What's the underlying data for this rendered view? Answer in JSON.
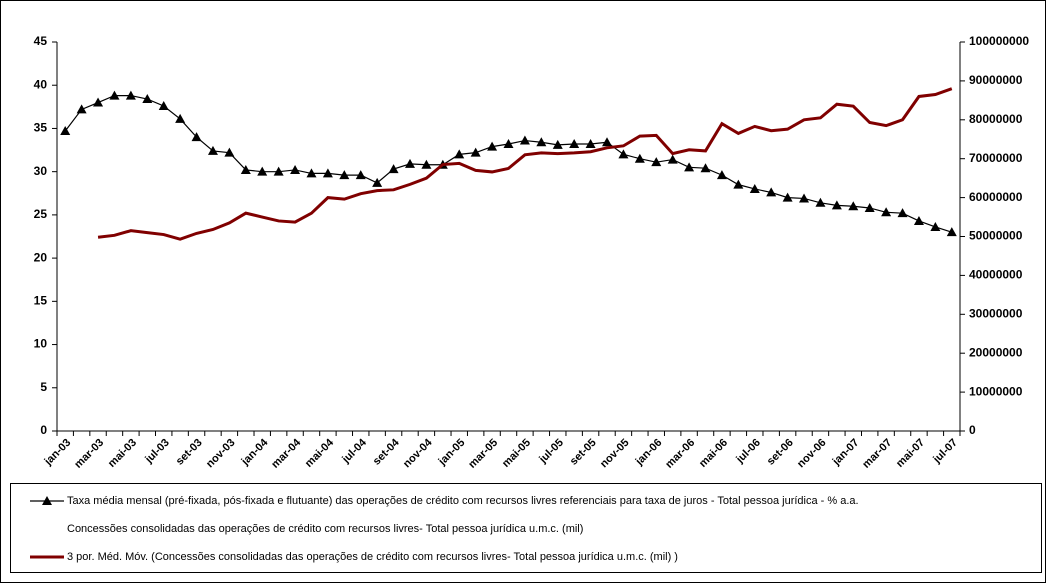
{
  "chart_data": {
    "type": "line",
    "categories": [
      "jan-03",
      null,
      "mar-03",
      null,
      "mai-03",
      null,
      "jul-03",
      null,
      "set-03",
      null,
      "nov-03",
      null,
      "jan-04",
      null,
      "mar-04",
      null,
      "mai-04",
      null,
      "jul-04",
      null,
      "set-04",
      null,
      "nov-04",
      null,
      "jan-05",
      null,
      "mar-05",
      null,
      "mai-05",
      null,
      "jul-05",
      null,
      "set-05",
      null,
      "nov-05",
      null,
      "jan-06",
      null,
      "mar-06",
      null,
      "mai-06",
      null,
      "jul-06",
      null,
      "set-06",
      null,
      "nov-06",
      null,
      "jan-07",
      null,
      "mar-07",
      null,
      "mai-07",
      null,
      "jul-07"
    ],
    "series": [
      {
        "name": "Taxa média mensal (pré-fixada, pós-fixada e flutuante) das operações de crédito com recursos livres referenciais para taxa de juros - Total pessoa jurídica - % a.a.",
        "color": "#000000",
        "values": [
          34.7,
          37.2,
          38.0,
          38.8,
          38.8,
          38.4,
          37.6,
          36.1,
          34.0,
          32.4,
          32.2,
          30.2,
          30.0,
          30.0,
          30.2,
          29.8,
          29.8,
          29.6,
          29.6,
          28.7,
          30.3,
          30.9,
          30.8,
          30.8,
          32.0,
          32.2,
          32.9,
          33.2,
          33.6,
          33.4,
          33.1,
          33.2,
          33.2,
          33.4,
          32.0,
          31.5,
          31.1,
          31.4,
          30.5,
          30.4,
          29.6,
          28.5,
          28.0,
          27.6,
          27.0,
          26.9,
          26.4,
          26.1,
          26.0,
          25.8,
          25.3,
          25.2,
          24.3,
          23.6,
          23.0
        ]
      },
      {
        "name": "Concessões consolidadas das operações de crédito com recursos livres- Total pessoa jurídica u.m.c. (mil)"
      },
      {
        "name": "3 por. Méd. Móv. (Concessões consolidadas das operações de crédito com recursos livres- Total pessoa jurídica u.m.c. (mil) )",
        "color": "#800000",
        "axis": "y2",
        "values": [
          null,
          null,
          49800000,
          50300000,
          51500000,
          51000000,
          50500000,
          49300000,
          50800000,
          51800000,
          53500000,
          56000000,
          55000000,
          54000000,
          53700000,
          56000000,
          60000000,
          59600000,
          61000000,
          61800000,
          62000000,
          63400000,
          65000000,
          68500000,
          68800000,
          67000000,
          66600000,
          67500000,
          71000000,
          71500000,
          71300000,
          71500000,
          71800000,
          72800000,
          73300000,
          75800000,
          76000000,
          71300000,
          72300000,
          72000000,
          79000000,
          76500000,
          78300000,
          77200000,
          77600000,
          80000000,
          80500000,
          84000000,
          83500000,
          79300000,
          78500000,
          80000000,
          86000000,
          86500000,
          88000000
        ]
      }
    ],
    "ylim": [
      0,
      45
    ],
    "yticks": [
      0,
      5,
      10,
      15,
      20,
      25,
      30,
      35,
      40,
      45
    ],
    "y2lim": [
      0,
      100000000
    ],
    "y2ticks": [
      0,
      10000000,
      20000000,
      30000000,
      40000000,
      50000000,
      60000000,
      70000000,
      80000000,
      90000000,
      100000000
    ],
    "grid": false,
    "legend": "bottom"
  }
}
